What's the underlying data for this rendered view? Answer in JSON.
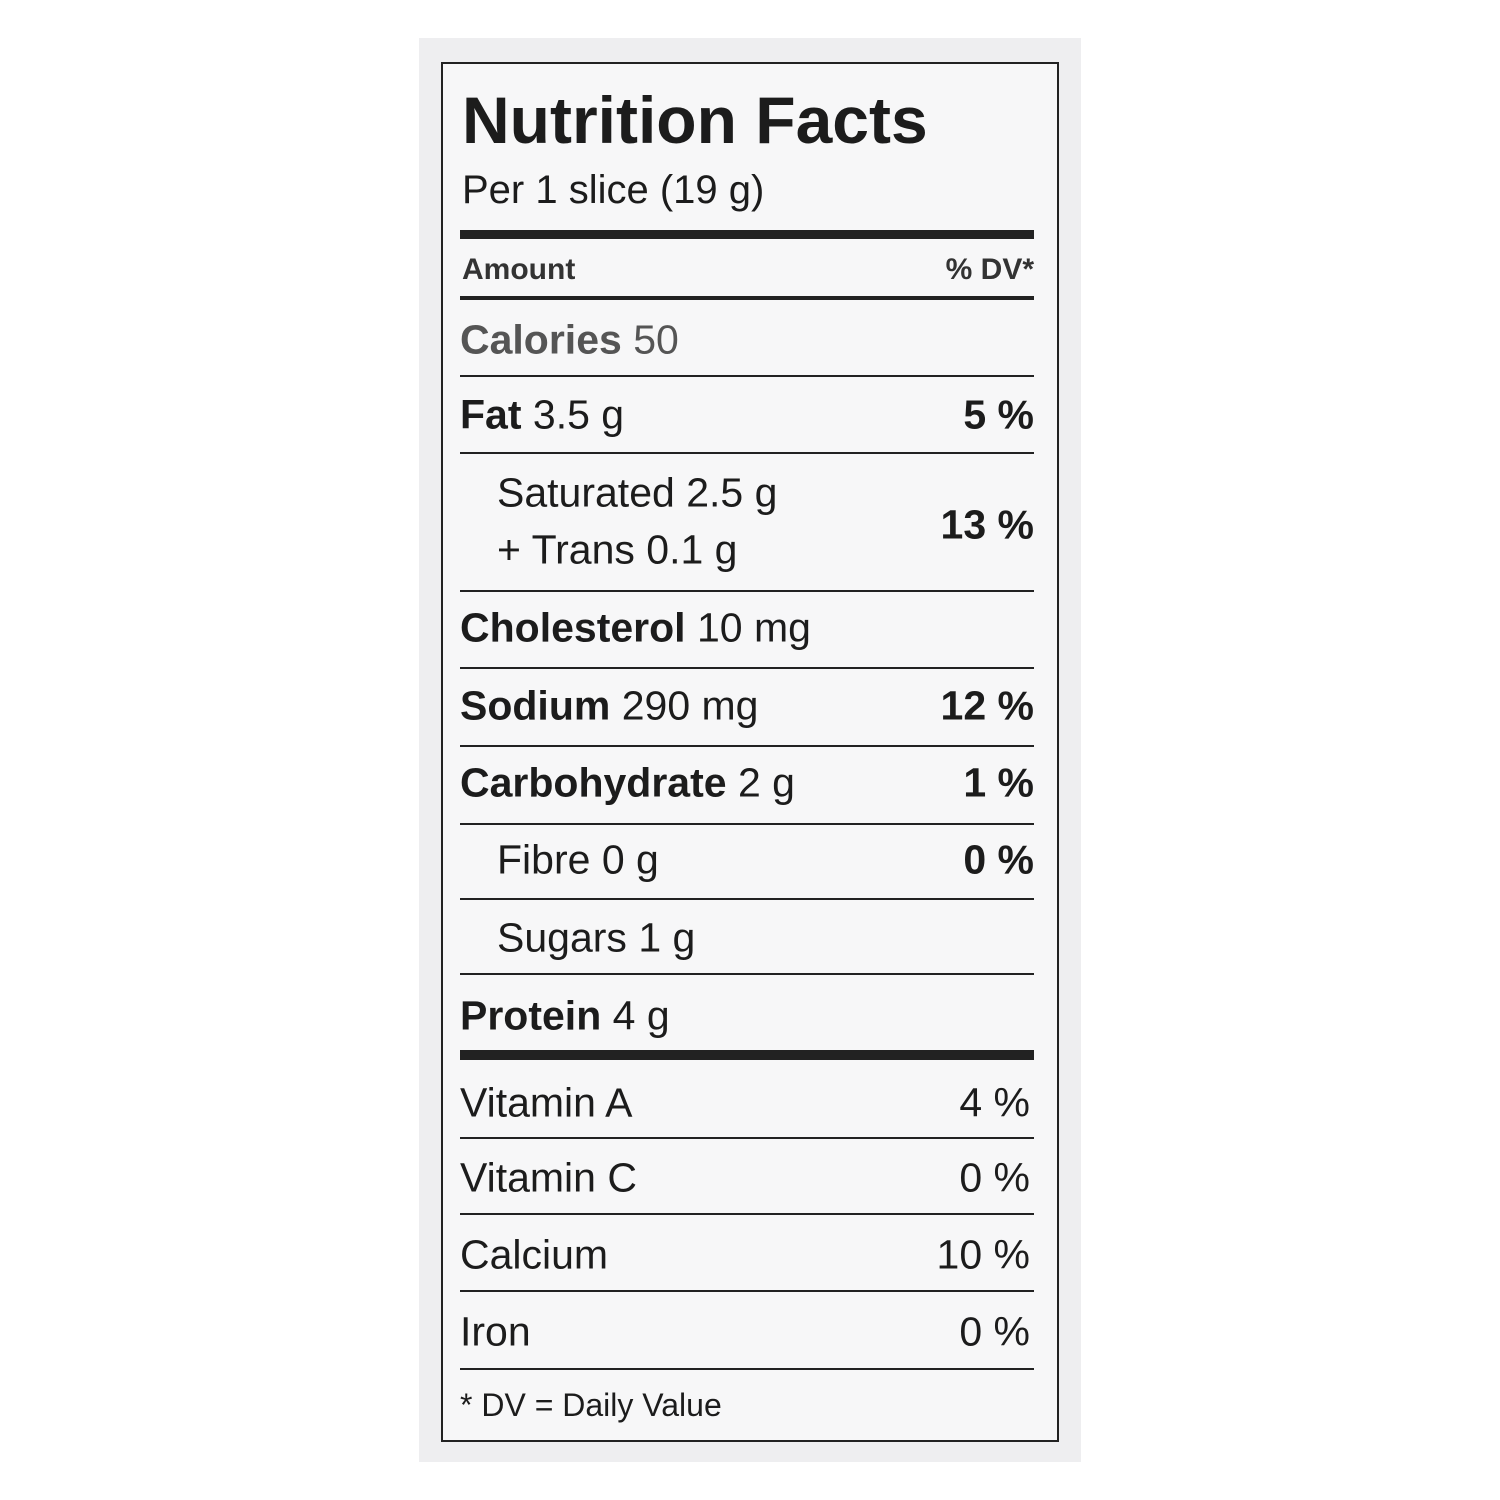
{
  "title": "Nutrition Facts",
  "serving": "Per 1 slice (19 g)",
  "header": {
    "amount": "Amount",
    "dv": "% DV*"
  },
  "rows": [
    {
      "name": "Calories",
      "amount": "50"
    },
    {
      "name": "Fat",
      "amount": "3.5 g",
      "dv": "5 %"
    },
    {
      "name": "Saturated",
      "amount": "2.5 g",
      "dv": "13 %"
    },
    {
      "name": "+ Trans",
      "amount": "0.1 g"
    },
    {
      "name": "Cholesterol",
      "amount": "10 mg"
    },
    {
      "name": "Sodium",
      "amount": "290 mg",
      "dv": "12 %"
    },
    {
      "name": "Carbohydrate",
      "amount": "2 g",
      "dv": "1 %"
    },
    {
      "name": "Fibre",
      "amount": "0 g",
      "dv": "0 %"
    },
    {
      "name": "Sugars",
      "amount": "1 g"
    },
    {
      "name": "Protein",
      "amount": "4 g"
    }
  ],
  "vitamins": [
    {
      "name": "Vitamin A",
      "dv": "4 %"
    },
    {
      "name": "Vitamin C",
      "dv": "0 %"
    },
    {
      "name": "Calcium",
      "dv": "10 %"
    },
    {
      "name": "Iron",
      "dv": "0 %"
    }
  ],
  "footnote": "* DV = Daily Value"
}
